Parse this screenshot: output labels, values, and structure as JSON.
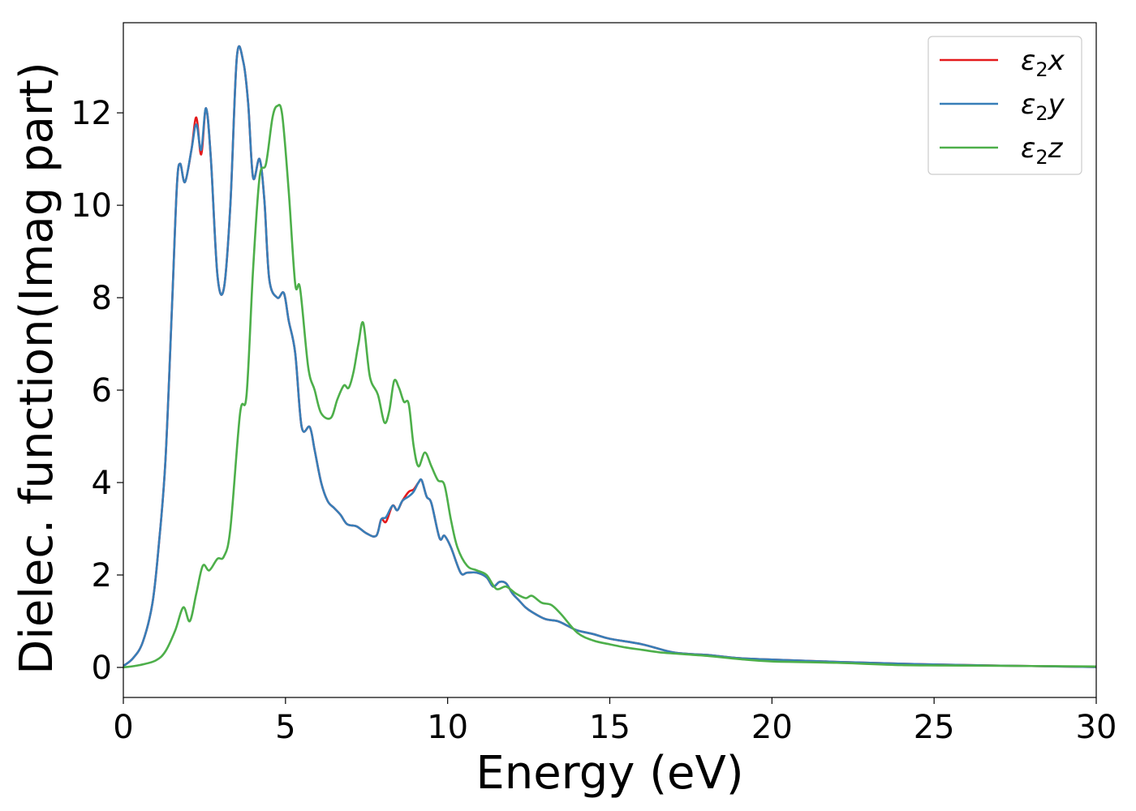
{
  "chart_data": {
    "type": "line",
    "xlabel": "Energy (eV)",
    "ylabel": "Dielec. function(Imag part)",
    "xlim": [
      0,
      30
    ],
    "ylim": [
      -0.65,
      13.95
    ],
    "xticks": [
      0,
      5,
      10,
      15,
      20,
      25,
      30
    ],
    "yticks": [
      0,
      2,
      4,
      6,
      8,
      10,
      12
    ],
    "grid": false,
    "legend_position": "top-right",
    "series": [
      {
        "name": "ε₂x",
        "legend_base": "ε",
        "legend_sub": "2",
        "legend_suffix": "x",
        "color": "#e41a1c",
        "x": [
          0,
          0.3,
          0.6,
          0.9,
          1.1,
          1.3,
          1.5,
          1.65,
          1.75,
          1.9,
          2.1,
          2.25,
          2.4,
          2.55,
          2.7,
          2.9,
          3.1,
          3.3,
          3.5,
          3.7,
          3.85,
          4.0,
          4.2,
          4.35,
          4.5,
          4.75,
          4.95,
          5.1,
          5.3,
          5.5,
          5.75,
          5.9,
          6.1,
          6.3,
          6.5,
          6.7,
          6.9,
          7.2,
          7.5,
          7.8,
          7.95,
          8.1,
          8.3,
          8.45,
          8.6,
          8.8,
          8.95,
          9.1,
          9.2,
          9.35,
          9.5,
          9.75,
          9.9,
          10.1,
          10.4,
          10.6,
          10.9,
          11.2,
          11.4,
          11.6,
          11.8,
          12.0,
          12.2,
          12.4,
          12.6,
          13.0,
          13.4,
          13.7,
          14.0,
          14.5,
          15.0,
          16.0,
          17.0,
          18.0,
          19.0,
          20.0,
          22.0,
          24.0,
          26.0,
          28.0,
          30.0
        ],
        "values": [
          0.03,
          0.2,
          0.55,
          1.4,
          2.7,
          4.5,
          7.8,
          10.4,
          10.9,
          10.5,
          11.2,
          11.9,
          11.1,
          12.1,
          11.0,
          8.5,
          8.2,
          10.0,
          13.2,
          13.1,
          12.2,
          10.6,
          11.0,
          10.1,
          8.4,
          8.0,
          8.1,
          7.5,
          6.8,
          5.2,
          5.2,
          4.7,
          4.0,
          3.6,
          3.45,
          3.3,
          3.1,
          3.05,
          2.9,
          2.85,
          3.2,
          3.15,
          3.5,
          3.4,
          3.6,
          3.8,
          3.85,
          4.0,
          4.05,
          3.7,
          3.55,
          2.8,
          2.85,
          2.6,
          2.05,
          2.05,
          2.05,
          1.95,
          1.75,
          1.85,
          1.82,
          1.6,
          1.45,
          1.3,
          1.2,
          1.05,
          1.0,
          0.9,
          0.8,
          0.72,
          0.62,
          0.5,
          0.32,
          0.27,
          0.2,
          0.17,
          0.12,
          0.08,
          0.05,
          0.03,
          0.01
        ]
      },
      {
        "name": "ε₂y",
        "legend_base": "ε",
        "legend_sub": "2",
        "legend_suffix": "y",
        "color": "#377eb8",
        "x": [
          0,
          0.3,
          0.6,
          0.9,
          1.1,
          1.3,
          1.5,
          1.65,
          1.75,
          1.9,
          2.1,
          2.25,
          2.4,
          2.55,
          2.7,
          2.9,
          3.1,
          3.3,
          3.5,
          3.7,
          3.85,
          4.0,
          4.2,
          4.35,
          4.5,
          4.75,
          4.95,
          5.1,
          5.3,
          5.5,
          5.75,
          5.9,
          6.1,
          6.3,
          6.5,
          6.7,
          6.9,
          7.2,
          7.5,
          7.8,
          7.95,
          8.1,
          8.3,
          8.45,
          8.6,
          8.8,
          8.95,
          9.1,
          9.2,
          9.35,
          9.5,
          9.75,
          9.9,
          10.1,
          10.4,
          10.6,
          10.9,
          11.2,
          11.4,
          11.6,
          11.8,
          12.0,
          12.2,
          12.4,
          12.6,
          13.0,
          13.4,
          13.7,
          14.0,
          14.5,
          15.0,
          16.0,
          17.0,
          18.0,
          19.0,
          20.0,
          22.0,
          24.0,
          26.0,
          28.0,
          30.0
        ],
        "values": [
          0.03,
          0.2,
          0.55,
          1.4,
          2.7,
          4.5,
          7.8,
          10.4,
          10.9,
          10.5,
          11.2,
          11.75,
          11.2,
          12.1,
          11.0,
          8.5,
          8.2,
          10.0,
          13.2,
          13.1,
          12.2,
          10.6,
          11.0,
          10.1,
          8.4,
          8.0,
          8.1,
          7.5,
          6.8,
          5.2,
          5.2,
          4.7,
          4.0,
          3.6,
          3.45,
          3.3,
          3.1,
          3.05,
          2.9,
          2.85,
          3.2,
          3.25,
          3.5,
          3.4,
          3.6,
          3.7,
          3.8,
          4.0,
          4.05,
          3.7,
          3.55,
          2.8,
          2.85,
          2.6,
          2.05,
          2.05,
          2.05,
          1.95,
          1.75,
          1.85,
          1.82,
          1.6,
          1.45,
          1.3,
          1.2,
          1.05,
          1.0,
          0.9,
          0.8,
          0.72,
          0.62,
          0.5,
          0.32,
          0.27,
          0.2,
          0.17,
          0.12,
          0.08,
          0.05,
          0.03,
          0.01
        ]
      },
      {
        "name": "ε₂z",
        "legend_base": "ε",
        "legend_sub": "2",
        "legend_suffix": "z",
        "color": "#4daf4a",
        "x": [
          0,
          0.5,
          1.0,
          1.3,
          1.6,
          1.85,
          2.05,
          2.25,
          2.45,
          2.65,
          2.9,
          3.1,
          3.3,
          3.6,
          3.8,
          4.0,
          4.2,
          4.4,
          4.6,
          4.75,
          4.9,
          5.1,
          5.3,
          5.45,
          5.7,
          5.9,
          6.1,
          6.4,
          6.6,
          6.8,
          6.95,
          7.1,
          7.25,
          7.4,
          7.6,
          7.85,
          8.05,
          8.2,
          8.35,
          8.5,
          8.65,
          8.8,
          8.95,
          9.1,
          9.3,
          9.5,
          9.7,
          9.9,
          10.1,
          10.3,
          10.6,
          10.9,
          11.2,
          11.5,
          11.8,
          12.1,
          12.4,
          12.6,
          12.9,
          13.2,
          13.5,
          14.0,
          14.5,
          15.0,
          15.5,
          16.0,
          16.5,
          17.0,
          18.0,
          19.0,
          20.0,
          22.0,
          24.0,
          26.0,
          28.0,
          30.0
        ],
        "values": [
          0.0,
          0.05,
          0.15,
          0.35,
          0.8,
          1.3,
          1.0,
          1.6,
          2.2,
          2.1,
          2.35,
          2.4,
          3.0,
          5.5,
          5.9,
          8.6,
          10.6,
          10.9,
          11.9,
          12.15,
          11.95,
          10.3,
          8.3,
          8.2,
          6.5,
          6.0,
          5.5,
          5.4,
          5.8,
          6.1,
          6.05,
          6.4,
          7.0,
          7.45,
          6.3,
          5.9,
          5.3,
          5.55,
          6.2,
          6.05,
          5.75,
          5.7,
          4.8,
          4.35,
          4.65,
          4.35,
          4.05,
          3.95,
          3.2,
          2.6,
          2.2,
          2.1,
          2.0,
          1.7,
          1.75,
          1.6,
          1.5,
          1.55,
          1.4,
          1.35,
          1.15,
          0.75,
          0.58,
          0.5,
          0.43,
          0.38,
          0.33,
          0.3,
          0.25,
          0.18,
          0.13,
          0.1,
          0.05,
          0.04,
          0.03,
          0.02
        ]
      }
    ]
  }
}
